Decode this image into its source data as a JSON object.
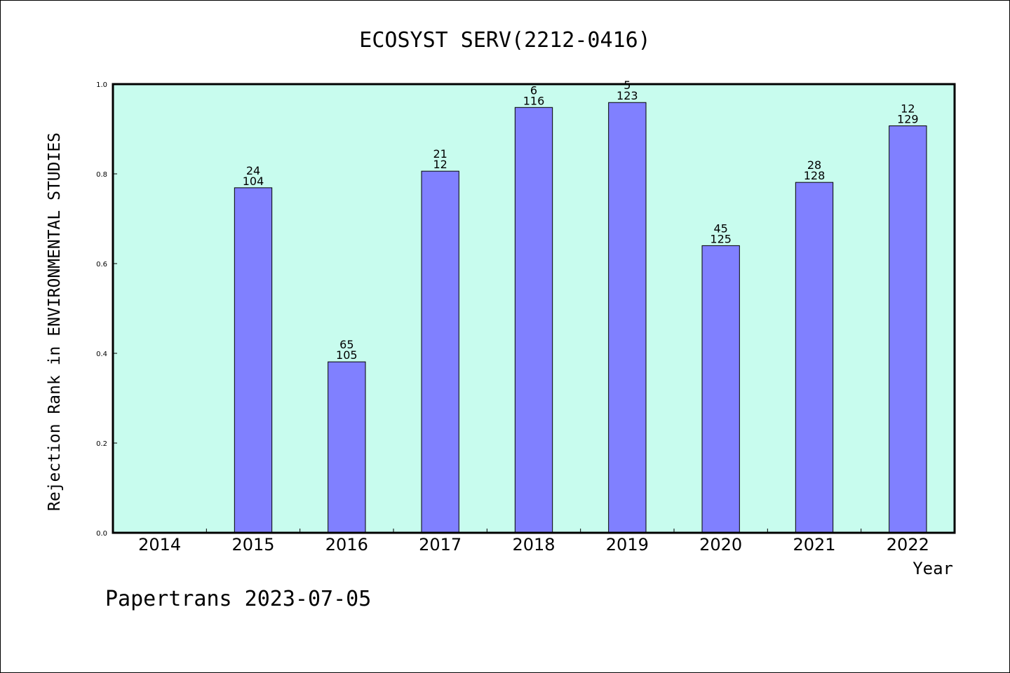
{
  "chart_data": {
    "type": "bar",
    "title": "ECOSYST SERV(2212-0416)",
    "xlabel": "Year",
    "ylabel": "Rejection Rank in ENVIRONMENTAL STUDIES",
    "categories": [
      "2014",
      "2015",
      "2016",
      "2017",
      "2018",
      "2019",
      "2020",
      "2021",
      "2022"
    ],
    "values": [
      null,
      0.769,
      0.381,
      0.806,
      0.948,
      0.959,
      0.64,
      0.781,
      0.907
    ],
    "label_top": [
      null,
      "24",
      "65",
      "21",
      "6",
      "5",
      "45",
      "28",
      "12"
    ],
    "label_bottom": [
      null,
      "104",
      "105",
      "12",
      "116",
      "123",
      "125",
      "128",
      "129"
    ],
    "ylim": [
      0,
      1.0
    ],
    "yticks": [
      "0.0",
      "0.2",
      "0.4",
      "0.6",
      "0.8",
      "1.0"
    ],
    "grid": false,
    "plot_background": "#c8fcee",
    "bar_color": "#8080ff"
  },
  "footer": "Papertrans 2023-07-05"
}
